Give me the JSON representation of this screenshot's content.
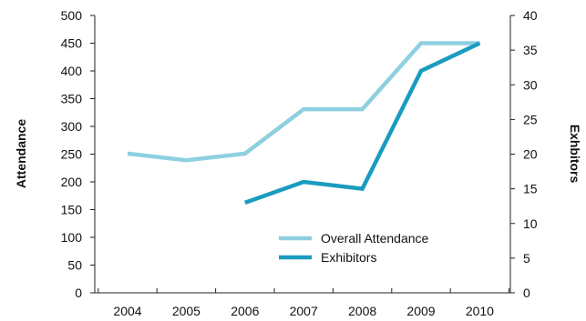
{
  "chart_data": {
    "type": "line",
    "title": "",
    "categories": [
      "2004",
      "2005",
      "2006",
      "2007",
      "2008",
      "2009",
      "2010"
    ],
    "y_left": {
      "label": "Attendance",
      "lim": [
        0,
        500
      ],
      "ticks": [
        "0",
        "50",
        "100",
        "150",
        "200",
        "250",
        "300",
        "350",
        "400",
        "450",
        "500"
      ]
    },
    "y_right": {
      "label": "Exhbitors",
      "lim": [
        0,
        40
      ],
      "ticks": [
        "0",
        "5",
        "10",
        "15",
        "20",
        "25",
        "30",
        "35",
        "40"
      ]
    },
    "series": [
      {
        "name": "Overall Attendance",
        "axis": "left",
        "color": "#8ecfe0",
        "values": [
          251,
          239,
          251,
          331,
          331,
          450,
          450
        ]
      },
      {
        "name": "Exhibitors",
        "axis": "right",
        "color": "#1a9cbf",
        "values": [
          null,
          null,
          13,
          16,
          15,
          32,
          36
        ]
      }
    ],
    "grid": false,
    "legend_position": "bottom-right"
  }
}
